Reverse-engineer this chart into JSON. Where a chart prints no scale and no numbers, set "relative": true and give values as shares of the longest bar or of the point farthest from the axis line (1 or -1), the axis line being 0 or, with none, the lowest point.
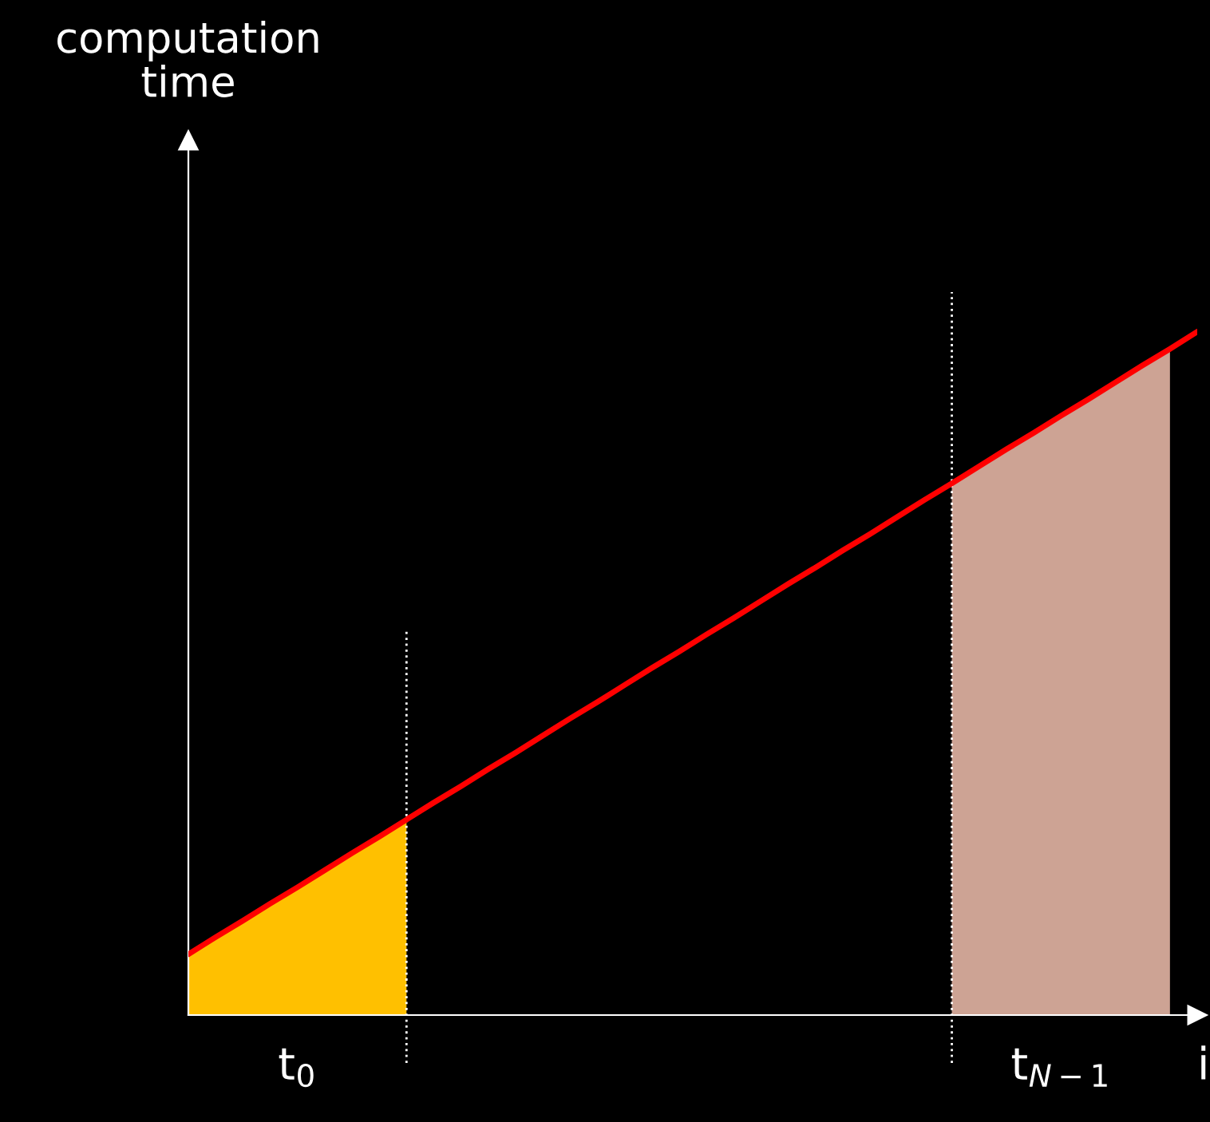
{
  "chart_data": {
    "type": "area",
    "relative": true,
    "xlabel": "i",
    "annotations": [
      "computation time"
    ],
    "categories": [
      null,
      null,
      null,
      null,
      "t$_{0}$",
      null,
      null,
      null,
      null,
      null,
      null,
      null,
      null,
      null,
      null,
      null,
      null,
      null,
      null,
      null,
      null,
      null,
      null,
      null,
      null,
      null,
      null,
      null,
      null,
      null,
      null,
      null,
      "t$_{N−1}$",
      null,
      null,
      null,
      null,
      null
    ],
    "series": [
      {
        "color": "#ffc000",
        "values": [
          0.089,
          0.114,
          0.138,
          0.163,
          0.187,
          0.212,
          0.237,
          0.261,
          0.286,
          null,
          null,
          null,
          null,
          null,
          null,
          null,
          null,
          null,
          null,
          null,
          null,
          null,
          null,
          null,
          null,
          null,
          null,
          null,
          null,
          null,
          null,
          null,
          null,
          null,
          null,
          null,
          null,
          null
        ]
      },
      {
        "color": "#cda394",
        "values": [
          null,
          null,
          null,
          null,
          null,
          null,
          null,
          null,
          null,
          null,
          null,
          null,
          null,
          null,
          null,
          null,
          null,
          null,
          null,
          null,
          null,
          null,
          null,
          null,
          null,
          null,
          null,
          null,
          0.778,
          0.803,
          0.828,
          0.852,
          0.877,
          0.901,
          0.926,
          0.951,
          0.975,
          null
        ]
      },
      {
        "type": "line",
        "color": "#ff0000",
        "values": [
          0.089,
          0.114,
          0.138,
          0.163,
          0.187,
          0.212,
          0.237,
          0.261,
          0.286,
          0.311,
          0.335,
          0.36,
          0.384,
          0.409,
          0.434,
          0.458,
          0.483,
          0.508,
          0.532,
          0.557,
          0.581,
          0.606,
          0.631,
          0.655,
          0.68,
          0.704,
          0.729,
          0.754,
          0.778,
          0.803,
          0.828,
          0.852,
          0.877,
          0.901,
          0.926,
          0.951,
          0.975,
          1
        ]
      }
    ],
    "tick_labels": "x"
  }
}
